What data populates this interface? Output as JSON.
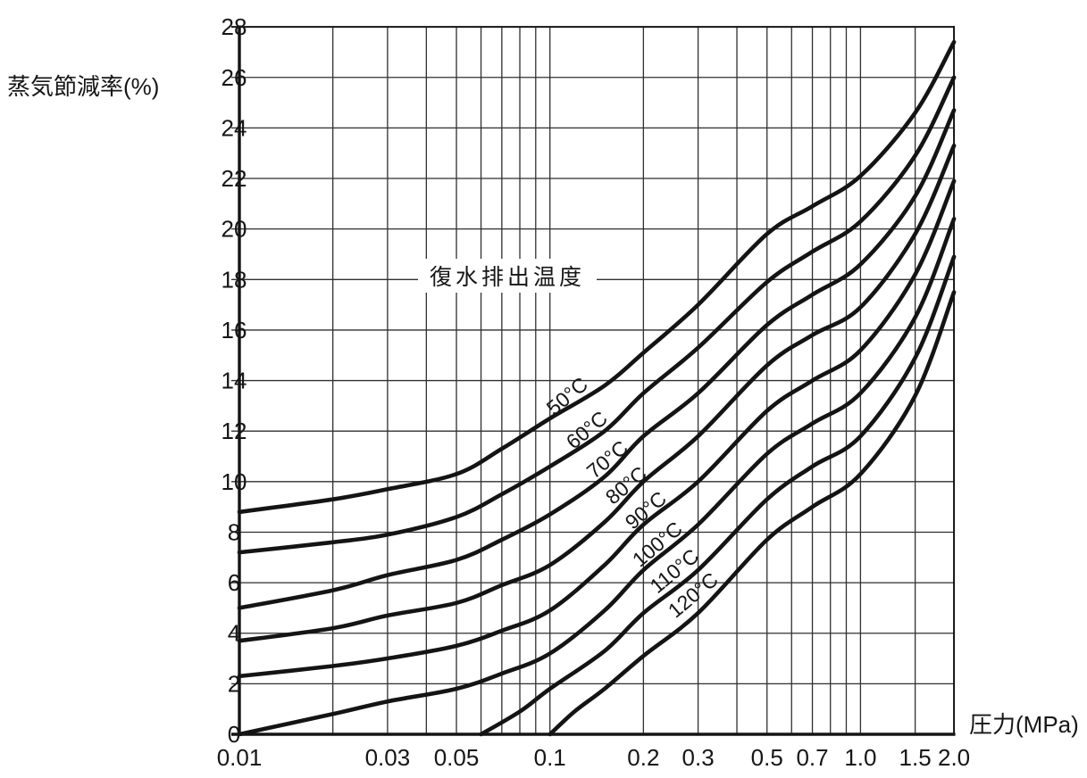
{
  "chart": {
    "y_axis_title": "蒸気節減率(%)",
    "x_axis_title": "圧力(MPa)",
    "annotation": "復水排出温度",
    "colors": {
      "ink": "#141414",
      "grid": "#2f2f2f",
      "background": "#ffffff"
    },
    "y_ticks": [
      {
        "v": 0,
        "label": "0"
      },
      {
        "v": 2,
        "label": "2"
      },
      {
        "v": 4,
        "label": "4"
      },
      {
        "v": 6,
        "label": "6"
      },
      {
        "v": 8,
        "label": "8"
      },
      {
        "v": 10,
        "label": "10"
      },
      {
        "v": 12,
        "label": "12"
      },
      {
        "v": 14,
        "label": "14"
      },
      {
        "v": 16,
        "label": "16"
      },
      {
        "v": 18,
        "label": "18"
      },
      {
        "v": 20,
        "label": "20"
      },
      {
        "v": 22,
        "label": "22"
      },
      {
        "v": 24,
        "label": "24"
      },
      {
        "v": 26,
        "label": "26"
      },
      {
        "v": 28,
        "label": "28"
      }
    ],
    "x_ticks": [
      {
        "p": 0.01,
        "label": "0.01"
      },
      {
        "p": 0.03,
        "label": "0.03"
      },
      {
        "p": 0.05,
        "label": "0.05"
      },
      {
        "p": 0.1,
        "label": "0.1"
      },
      {
        "p": 0.2,
        "label": "0.2"
      },
      {
        "p": 0.3,
        "label": "0.3"
      },
      {
        "p": 0.5,
        "label": "0.5"
      },
      {
        "p": 0.7,
        "label": "0.7"
      },
      {
        "p": 1.0,
        "label": "1.0"
      },
      {
        "p": 1.5,
        "label": "1.5"
      },
      {
        "p": 2.0,
        "label": "2.0"
      }
    ],
    "x_gridlines": [
      0.02,
      0.03,
      0.04,
      0.05,
      0.06,
      0.07,
      0.08,
      0.09,
      0.1,
      0.2,
      0.3,
      0.4,
      0.5,
      0.6,
      0.7,
      0.8,
      0.9,
      1.0,
      1.5
    ],
    "y_gridlines": [
      2,
      4,
      6,
      8,
      10,
      12,
      14,
      16,
      18,
      20,
      22,
      24,
      26
    ]
  },
  "chart_data": {
    "type": "line",
    "title": "",
    "xlabel": "圧力(MPa)",
    "ylabel": "蒸気節減率(%)",
    "x_scale": "log",
    "xlim": [
      0.01,
      2.0
    ],
    "ylim": [
      0,
      28
    ],
    "grid": "both",
    "legend_position": "inline-curve-labels",
    "series_group_label": "復水排出温度",
    "series": [
      {
        "name": "50°C",
        "points": [
          [
            0.01,
            8.8
          ],
          [
            0.02,
            9.3
          ],
          [
            0.03,
            9.7
          ],
          [
            0.05,
            10.3
          ],
          [
            0.07,
            11.3
          ],
          [
            0.1,
            12.5
          ],
          [
            0.15,
            13.8
          ],
          [
            0.2,
            15.1
          ],
          [
            0.3,
            17.0
          ],
          [
            0.5,
            19.8
          ],
          [
            0.7,
            20.9
          ],
          [
            1.0,
            22.1
          ],
          [
            1.5,
            24.6
          ],
          [
            2.0,
            27.4
          ]
        ]
      },
      {
        "name": "60°C",
        "points": [
          [
            0.01,
            7.2
          ],
          [
            0.02,
            7.6
          ],
          [
            0.03,
            7.9
          ],
          [
            0.05,
            8.6
          ],
          [
            0.07,
            9.5
          ],
          [
            0.1,
            10.6
          ],
          [
            0.15,
            12.0
          ],
          [
            0.2,
            13.5
          ],
          [
            0.3,
            15.3
          ],
          [
            0.5,
            17.9
          ],
          [
            0.7,
            19.1
          ],
          [
            1.0,
            20.3
          ],
          [
            1.5,
            22.9
          ],
          [
            2.0,
            26.0
          ]
        ]
      },
      {
        "name": "70°C",
        "points": [
          [
            0.01,
            5.0
          ],
          [
            0.02,
            5.7
          ],
          [
            0.03,
            6.3
          ],
          [
            0.05,
            6.9
          ],
          [
            0.07,
            7.7
          ],
          [
            0.1,
            8.7
          ],
          [
            0.15,
            10.2
          ],
          [
            0.2,
            11.8
          ],
          [
            0.3,
            13.5
          ],
          [
            0.5,
            16.2
          ],
          [
            0.7,
            17.4
          ],
          [
            1.0,
            18.6
          ],
          [
            1.5,
            21.3
          ],
          [
            2.0,
            24.7
          ]
        ]
      },
      {
        "name": "80°C",
        "points": [
          [
            0.01,
            3.7
          ],
          [
            0.02,
            4.2
          ],
          [
            0.03,
            4.7
          ],
          [
            0.05,
            5.2
          ],
          [
            0.07,
            5.9
          ],
          [
            0.1,
            6.7
          ],
          [
            0.15,
            8.4
          ],
          [
            0.2,
            10.0
          ],
          [
            0.3,
            11.8
          ],
          [
            0.5,
            14.6
          ],
          [
            0.7,
            15.8
          ],
          [
            1.0,
            16.9
          ],
          [
            1.5,
            19.8
          ],
          [
            2.0,
            23.3
          ]
        ]
      },
      {
        "name": "90°C",
        "points": [
          [
            0.01,
            2.3
          ],
          [
            0.02,
            2.7
          ],
          [
            0.03,
            3.0
          ],
          [
            0.05,
            3.5
          ],
          [
            0.07,
            4.1
          ],
          [
            0.1,
            4.9
          ],
          [
            0.15,
            6.7
          ],
          [
            0.2,
            8.3
          ],
          [
            0.3,
            10.0
          ],
          [
            0.5,
            12.8
          ],
          [
            0.7,
            14.0
          ],
          [
            1.0,
            15.2
          ],
          [
            1.5,
            18.2
          ],
          [
            2.0,
            21.9
          ]
        ]
      },
      {
        "name": "100°C",
        "points": [
          [
            0.01,
            0.0
          ],
          [
            0.02,
            0.8
          ],
          [
            0.03,
            1.3
          ],
          [
            0.05,
            1.8
          ],
          [
            0.07,
            2.4
          ],
          [
            0.1,
            3.2
          ],
          [
            0.15,
            4.9
          ],
          [
            0.2,
            6.5
          ],
          [
            0.3,
            8.3
          ],
          [
            0.5,
            11.1
          ],
          [
            0.7,
            12.3
          ],
          [
            1.0,
            13.5
          ],
          [
            1.5,
            16.5
          ],
          [
            2.0,
            20.4
          ]
        ]
      },
      {
        "name": "110°C",
        "points": [
          [
            0.06,
            0.0
          ],
          [
            0.08,
            0.9
          ],
          [
            0.1,
            1.8
          ],
          [
            0.15,
            3.3
          ],
          [
            0.2,
            4.8
          ],
          [
            0.3,
            6.5
          ],
          [
            0.5,
            9.3
          ],
          [
            0.7,
            10.6
          ],
          [
            1.0,
            11.8
          ],
          [
            1.5,
            14.9
          ],
          [
            2.0,
            18.9
          ]
        ]
      },
      {
        "name": "120°C",
        "points": [
          [
            0.1,
            0.0
          ],
          [
            0.12,
            0.9
          ],
          [
            0.15,
            1.8
          ],
          [
            0.2,
            3.1
          ],
          [
            0.3,
            4.8
          ],
          [
            0.5,
            7.7
          ],
          [
            0.7,
            9.0
          ],
          [
            1.0,
            10.3
          ],
          [
            1.5,
            13.4
          ],
          [
            2.0,
            17.5
          ]
        ]
      }
    ]
  }
}
